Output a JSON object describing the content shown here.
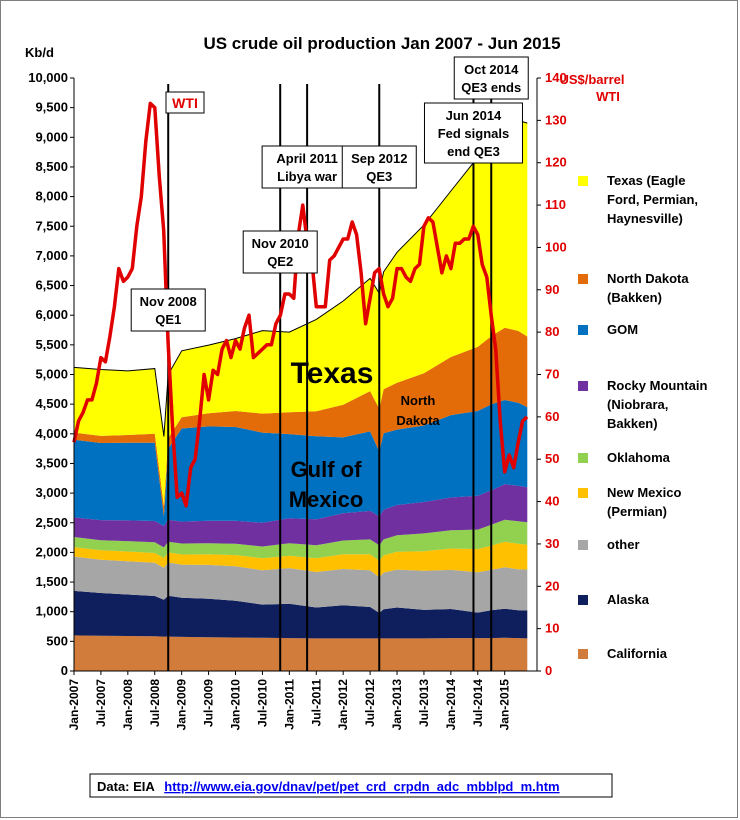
{
  "chart_data": {
    "type": "area",
    "title": "US crude oil production Jan 2007 - Jun 2015",
    "ylabel_left": "Kb/d",
    "ylabel_right": "US$/barrel",
    "ylabel_right_sub": "WTI",
    "ylim_left": [
      0,
      10000
    ],
    "ylim_right": [
      0,
      140
    ],
    "yticks_left": [
      "0",
      "500",
      "1,000",
      "1,500",
      "2,000",
      "2,500",
      "3,000",
      "3,500",
      "4,000",
      "4,500",
      "5,000",
      "5,500",
      "6,000",
      "6,500",
      "7,000",
      "7,500",
      "8,000",
      "8,500",
      "9,000",
      "9,500",
      "10,000"
    ],
    "yticks_right": [
      "0",
      "10",
      "20",
      "30",
      "40",
      "50",
      "60",
      "70",
      "80",
      "90",
      "100",
      "110",
      "120",
      "130",
      "140"
    ],
    "xticks": [
      "Jan-2007",
      "Jul-2007",
      "Jan-2008",
      "Jul-2008",
      "Jan-2009",
      "Jul-2009",
      "Jan-2010",
      "Jul-2010",
      "Jan-2011",
      "Jul-2011",
      "Jan-2012",
      "Jul-2012",
      "Jan-2013",
      "Jul-2013",
      "Jan-2014",
      "Jul-2014",
      "Jan-2015"
    ],
    "x": [
      2007.0,
      2007.5,
      2008.0,
      2008.5,
      2008.67,
      2008.75,
      2009.0,
      2009.5,
      2010.0,
      2010.5,
      2011.0,
      2011.5,
      2012.0,
      2012.5,
      2012.67,
      2012.75,
      2013.0,
      2013.5,
      2014.0,
      2014.5,
      2014.75,
      2015.0,
      2015.25,
      2015.42
    ],
    "series": [
      {
        "name": "California",
        "color": "#d27c3c",
        "values": [
          600,
          595,
          590,
          585,
          580,
          580,
          575,
          570,
          565,
          560,
          555,
          550,
          550,
          550,
          550,
          550,
          550,
          550,
          555,
          555,
          555,
          560,
          555,
          550
        ]
      },
      {
        "name": "Alaska",
        "color": "#0f1f5e",
        "values": [
          750,
          720,
          700,
          680,
          620,
          690,
          660,
          650,
          620,
          560,
          580,
          520,
          560,
          530,
          430,
          490,
          520,
          480,
          490,
          430,
          470,
          490,
          470,
          470
        ]
      },
      {
        "name": "other",
        "color": "#a6a6a6",
        "values": [
          580,
          560,
          560,
          560,
          540,
          560,
          560,
          570,
          580,
          580,
          600,
          600,
          610,
          620,
          600,
          620,
          640,
          660,
          660,
          680,
          680,
          700,
          690,
          690
        ]
      },
      {
        "name": "New Mexico (Permian)",
        "color": "#ffc000",
        "values": [
          160,
          160,
          165,
          165,
          165,
          170,
          170,
          180,
          190,
          200,
          210,
          230,
          250,
          270,
          280,
          290,
          300,
          330,
          360,
          390,
          410,
          430,
          430,
          420
        ]
      },
      {
        "name": "Oklahoma",
        "color": "#92d050",
        "values": [
          170,
          170,
          175,
          180,
          180,
          180,
          185,
          185,
          190,
          200,
          210,
          220,
          230,
          250,
          260,
          270,
          280,
          300,
          310,
          330,
          350,
          370,
          380,
          380
        ]
      },
      {
        "name": "Rocky Mountain (Niobrara, Bakken)",
        "color": "#7030a0",
        "values": [
          330,
          340,
          350,
          360,
          360,
          370,
          370,
          380,
          390,
          400,
          420,
          440,
          460,
          480,
          490,
          500,
          510,
          530,
          550,
          570,
          580,
          600,
          600,
          590
        ]
      },
      {
        "name": "GOM",
        "color": "#0070c0",
        "values": [
          1310,
          1300,
          1310,
          1320,
          160,
          1200,
          1570,
          1590,
          1580,
          1520,
          1420,
          1400,
          1280,
          1340,
          1090,
          1290,
          1270,
          1290,
          1390,
          1430,
          1450,
          1420,
          1400,
          1350
        ]
      },
      {
        "name": "North Dakota (Bakken)",
        "color": "#e36c09",
        "values": [
          120,
          120,
          130,
          150,
          170,
          180,
          190,
          220,
          270,
          320,
          370,
          420,
          550,
          680,
          720,
          740,
          790,
          880,
          980,
          1080,
          1150,
          1220,
          1210,
          1190
        ]
      },
      {
        "name": "Texas (Eagle Ford, Permian, Haynesville)",
        "color": "#ffff00",
        "values": [
          1100,
          1120,
          1080,
          1100,
          1180,
          1070,
          1120,
          1150,
          1220,
          1400,
          1350,
          1550,
          1750,
          1900,
          1950,
          1980,
          2200,
          2500,
          2800,
          3200,
          3400,
          3450,
          3550,
          3600
        ]
      }
    ],
    "wti": {
      "name": "WTI",
      "color": "#e00000",
      "x": [
        2007.0,
        2007.083,
        2007.167,
        2007.25,
        2007.333,
        2007.417,
        2007.5,
        2007.583,
        2007.667,
        2007.75,
        2007.833,
        2007.917,
        2008.0,
        2008.083,
        2008.167,
        2008.25,
        2008.333,
        2008.417,
        2008.5,
        2008.583,
        2008.667,
        2008.75,
        2008.833,
        2008.917,
        2009.0,
        2009.083,
        2009.167,
        2009.25,
        2009.333,
        2009.417,
        2009.5,
        2009.583,
        2009.667,
        2009.75,
        2009.833,
        2009.917,
        2010.0,
        2010.083,
        2010.167,
        2010.25,
        2010.333,
        2010.417,
        2010.5,
        2010.583,
        2010.667,
        2010.75,
        2010.833,
        2010.917,
        2011.0,
        2011.083,
        2011.167,
        2011.25,
        2011.333,
        2011.417,
        2011.5,
        2011.583,
        2011.667,
        2011.75,
        2011.833,
        2011.917,
        2012.0,
        2012.083,
        2012.167,
        2012.25,
        2012.333,
        2012.417,
        2012.5,
        2012.583,
        2012.667,
        2012.75,
        2012.833,
        2012.917,
        2013.0,
        2013.083,
        2013.167,
        2013.25,
        2013.333,
        2013.417,
        2013.5,
        2013.583,
        2013.667,
        2013.75,
        2013.833,
        2013.917,
        2014.0,
        2014.083,
        2014.167,
        2014.25,
        2014.333,
        2014.417,
        2014.5,
        2014.583,
        2014.667,
        2014.75,
        2014.833,
        2014.917,
        2015.0,
        2015.083,
        2015.167,
        2015.25,
        2015.333,
        2015.417
      ],
      "values": [
        54,
        59,
        61,
        64,
        64,
        68,
        74,
        73,
        79,
        86,
        95,
        92,
        93,
        95,
        105,
        112,
        125,
        134,
        133,
        117,
        104,
        77,
        57,
        41,
        42,
        39,
        48,
        50,
        59,
        70,
        64,
        71,
        70,
        76,
        78,
        74,
        78,
        76,
        81,
        84,
        74,
        75,
        76,
        77,
        77,
        82,
        84,
        89,
        89,
        88,
        103,
        110,
        101,
        97,
        86,
        86,
        86,
        97,
        98,
        100,
        102,
        102,
        106,
        103,
        94,
        82,
        88,
        94,
        95,
        89,
        86,
        88,
        95,
        95,
        93,
        92,
        95,
        96,
        105,
        107,
        106,
        100,
        94,
        98,
        95,
        101,
        101,
        102,
        102,
        105,
        103,
        96,
        93,
        84,
        76,
        59,
        47,
        51,
        48,
        54,
        59,
        60
      ]
    },
    "annotations": [
      {
        "x": 2008.75,
        "lines": [
          "Nov 2008",
          "QE1"
        ]
      },
      {
        "x": 2010.83,
        "lines": [
          "Nov 2010",
          "QE2"
        ]
      },
      {
        "x": 2011.33,
        "lines": [
          "April 2011",
          "Libya war"
        ]
      },
      {
        "x": 2012.67,
        "lines": [
          "Sep 2012",
          "QE3"
        ]
      },
      {
        "x": 2014.42,
        "lines": [
          "Jun 2014",
          "Fed signals",
          "end QE3"
        ]
      },
      {
        "x": 2014.75,
        "lines": [
          "Oct 2014",
          "QE3 ends"
        ]
      }
    ],
    "labels": {
      "texas": "Texas",
      "gulf": "Gulf of",
      "mexico": "Mexico",
      "north": "North",
      "dakota": "Dakota",
      "wti_tag": "WTI"
    },
    "legend": [
      [
        "Texas (Eagle",
        "Ford, Permian,",
        "Haynesville)"
      ],
      [
        "North Dakota",
        "(Bakken)"
      ],
      [
        "GOM"
      ],
      [
        "Rocky Mountain",
        "(Niobrara,",
        "Bakken)"
      ],
      [
        "Oklahoma"
      ],
      [
        "New Mexico",
        "(Permian)"
      ],
      [
        "other"
      ],
      [
        "Alaska"
      ],
      [
        "California"
      ]
    ],
    "legend_position": "right",
    "grid": false
  },
  "source": {
    "prefix": "Data: EIA",
    "url": "http://www.eia.gov/dnav/pet/pet_crd_crpdn_adc_mbblpd_m.htm"
  }
}
